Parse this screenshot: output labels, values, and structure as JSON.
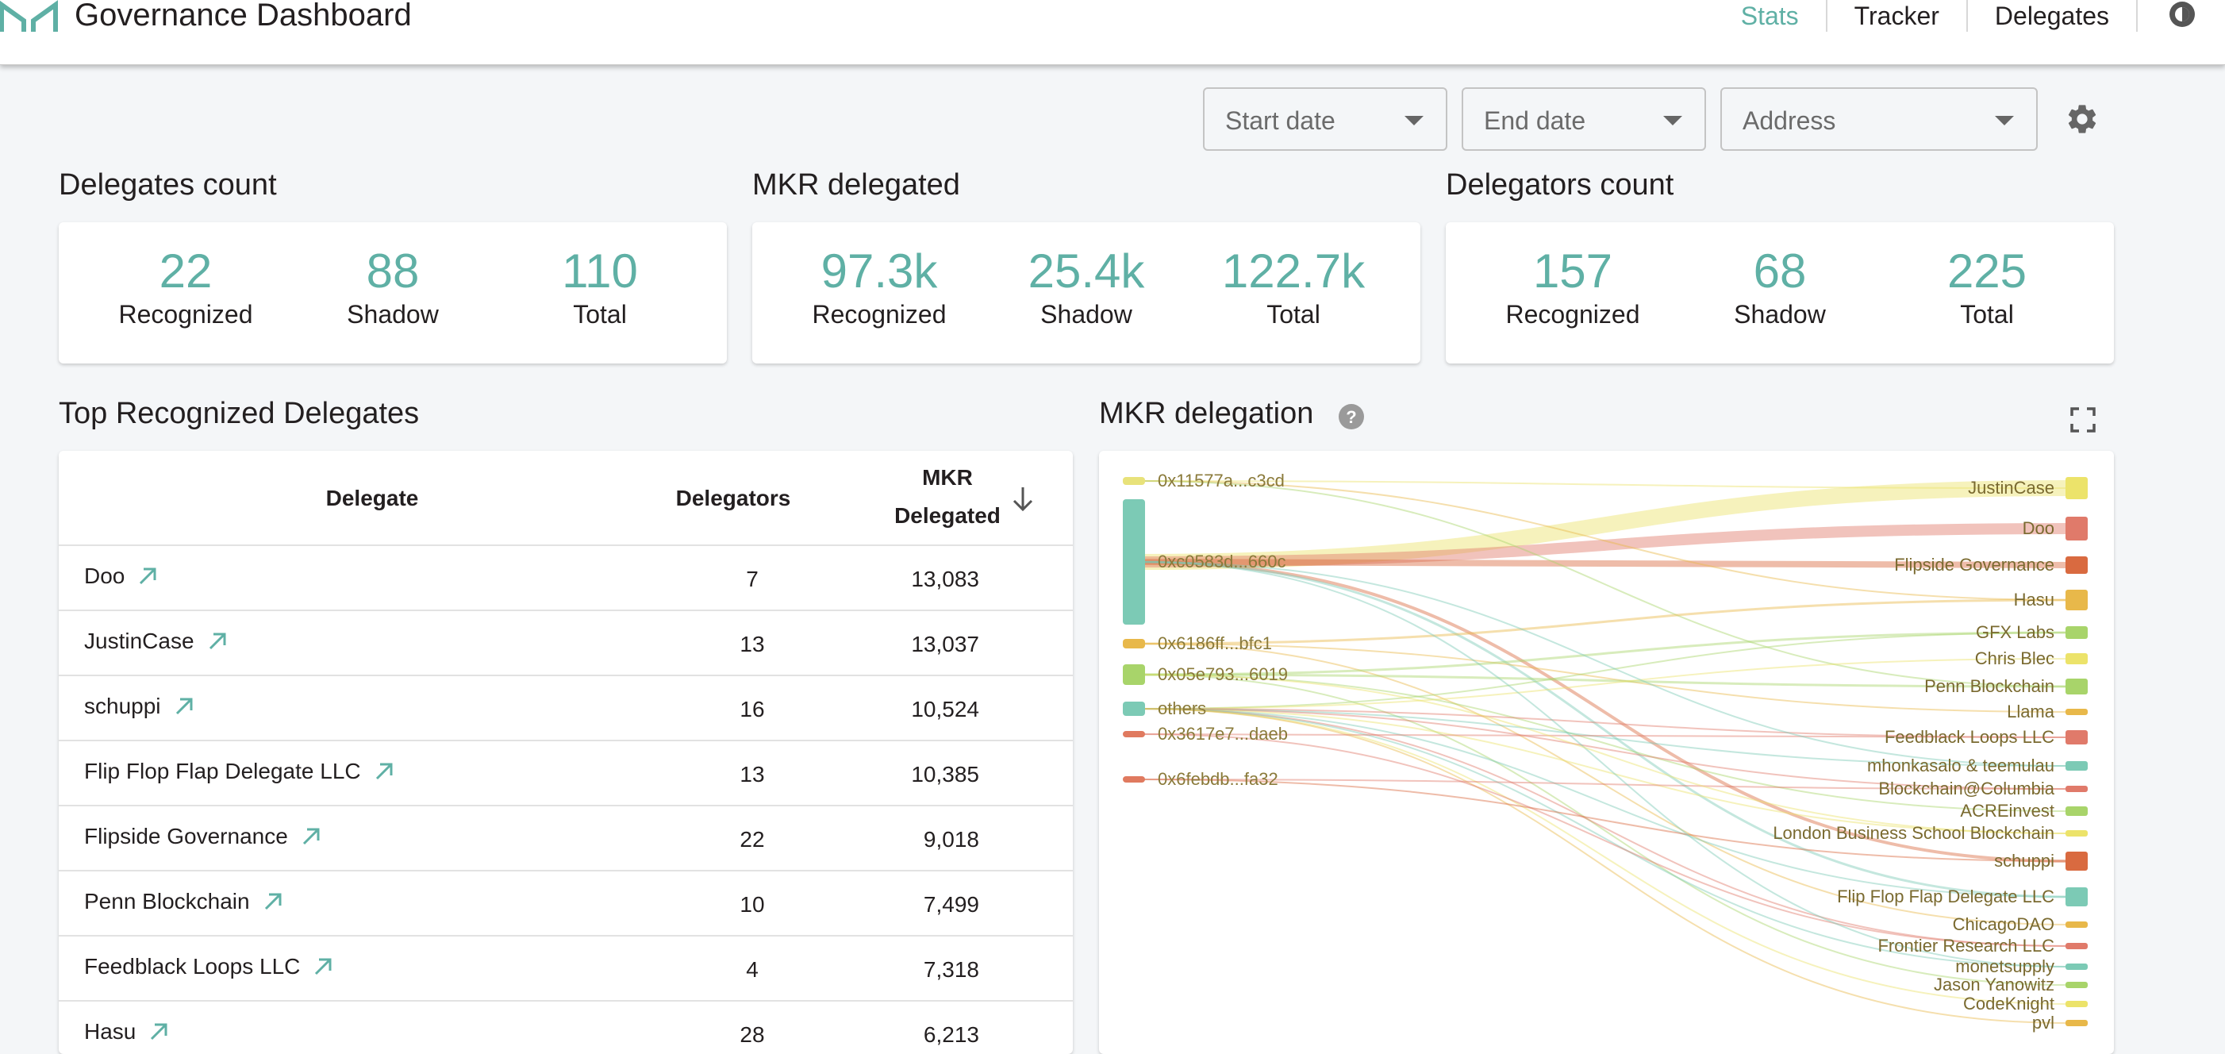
{
  "header": {
    "title": "Governance Dashboard",
    "nav": [
      {
        "label": "Stats",
        "active": true
      },
      {
        "label": "Tracker",
        "active": false
      },
      {
        "label": "Delegates",
        "active": false
      }
    ],
    "icons": [
      "maker-logo-icon",
      "theme-toggle-icon"
    ]
  },
  "filters": {
    "start_date": "Start date",
    "end_date": "End date",
    "address": "Address",
    "settings_icon": "gear-icon"
  },
  "stats": [
    {
      "title": "Delegates count",
      "items": [
        {
          "value": "22",
          "label": "Recognized"
        },
        {
          "value": "88",
          "label": "Shadow"
        },
        {
          "value": "110",
          "label": "Total"
        }
      ]
    },
    {
      "title": "MKR delegated",
      "items": [
        {
          "value": "97.3k",
          "label": "Recognized"
        },
        {
          "value": "25.4k",
          "label": "Shadow"
        },
        {
          "value": "122.7k",
          "label": "Total"
        }
      ]
    },
    {
      "title": "Delegators count",
      "items": [
        {
          "value": "157",
          "label": "Recognized"
        },
        {
          "value": "68",
          "label": "Shadow"
        },
        {
          "value": "225",
          "label": "Total"
        }
      ]
    }
  ],
  "top_delegates": {
    "title": "Top Recognized Delegates",
    "columns": {
      "delegate": "Delegate",
      "delegators": "Delegators",
      "mkr_line1": "MKR",
      "mkr_line2": "Delegated"
    },
    "rows": [
      {
        "name": "Doo",
        "delegators": "7",
        "mkr": "13,083"
      },
      {
        "name": "JustinCase",
        "delegators": "13",
        "mkr": "13,037"
      },
      {
        "name": "schuppi",
        "delegators": "16",
        "mkr": "10,524"
      },
      {
        "name": "Flip Flop Flap Delegate LLC",
        "delegators": "13",
        "mkr": "10,385"
      },
      {
        "name": "Flipside Governance",
        "delegators": "22",
        "mkr": "9,018"
      },
      {
        "name": "Penn Blockchain",
        "delegators": "10",
        "mkr": "7,499"
      },
      {
        "name": "Feedblack Loops LLC",
        "delegators": "4",
        "mkr": "7,318"
      },
      {
        "name": "Hasu",
        "delegators": "28",
        "mkr": "6,213"
      }
    ]
  },
  "delegation": {
    "title": "MKR delegation",
    "sources": [
      {
        "label": "0x11577a...c3cd",
        "color": "#e8e27a"
      },
      {
        "label": "0xc0583d...660c",
        "color": "#7ccab5"
      },
      {
        "label": "0x6186ff...bfc1",
        "color": "#e8b84a"
      },
      {
        "label": "0x05e793...6019",
        "color": "#a8d46a"
      },
      {
        "label": "others",
        "color": "#7ccab5"
      },
      {
        "label": "0x3617e7...daeb",
        "color": "#e07a5f"
      },
      {
        "label": "0x6febdb...fa32",
        "color": "#e07a5f"
      }
    ],
    "targets": [
      {
        "label": "JustinCase",
        "color": "#ece36a"
      },
      {
        "label": "Doo",
        "color": "#e07a6a"
      },
      {
        "label": "Flipside Governance",
        "color": "#d96a40"
      },
      {
        "label": "Hasu",
        "color": "#e8b84a"
      },
      {
        "label": "GFX Labs",
        "color": "#a8d46a"
      },
      {
        "label": "Chris Blec",
        "color": "#ece36a"
      },
      {
        "label": "Penn Blockchain",
        "color": "#a8d46a"
      },
      {
        "label": "Llama",
        "color": "#e8b84a"
      },
      {
        "label": "Feedblack Loops LLC",
        "color": "#e07a6a"
      },
      {
        "label": "mhonkasalo & teemulau",
        "color": "#7ccab5"
      },
      {
        "label": "Blockchain@Columbia",
        "color": "#e07a6a"
      },
      {
        "label": "ACREinvest",
        "color": "#a8d46a"
      },
      {
        "label": "London Business School Blockchain",
        "color": "#ece36a"
      },
      {
        "label": "schuppi",
        "color": "#d96a40"
      },
      {
        "label": "Flip Flop Flap Delegate LLC",
        "color": "#7ccab5"
      },
      {
        "label": "ChicagoDAO",
        "color": "#e8b84a"
      },
      {
        "label": "Frontier Research LLC",
        "color": "#e07a6a"
      },
      {
        "label": "monetsupply",
        "color": "#7ccab5"
      },
      {
        "label": "Jason Yanowitz",
        "color": "#a8d46a"
      },
      {
        "label": "CodeKnight",
        "color": "#ece36a"
      },
      {
        "label": "pvl",
        "color": "#e8b84a"
      }
    ]
  }
}
